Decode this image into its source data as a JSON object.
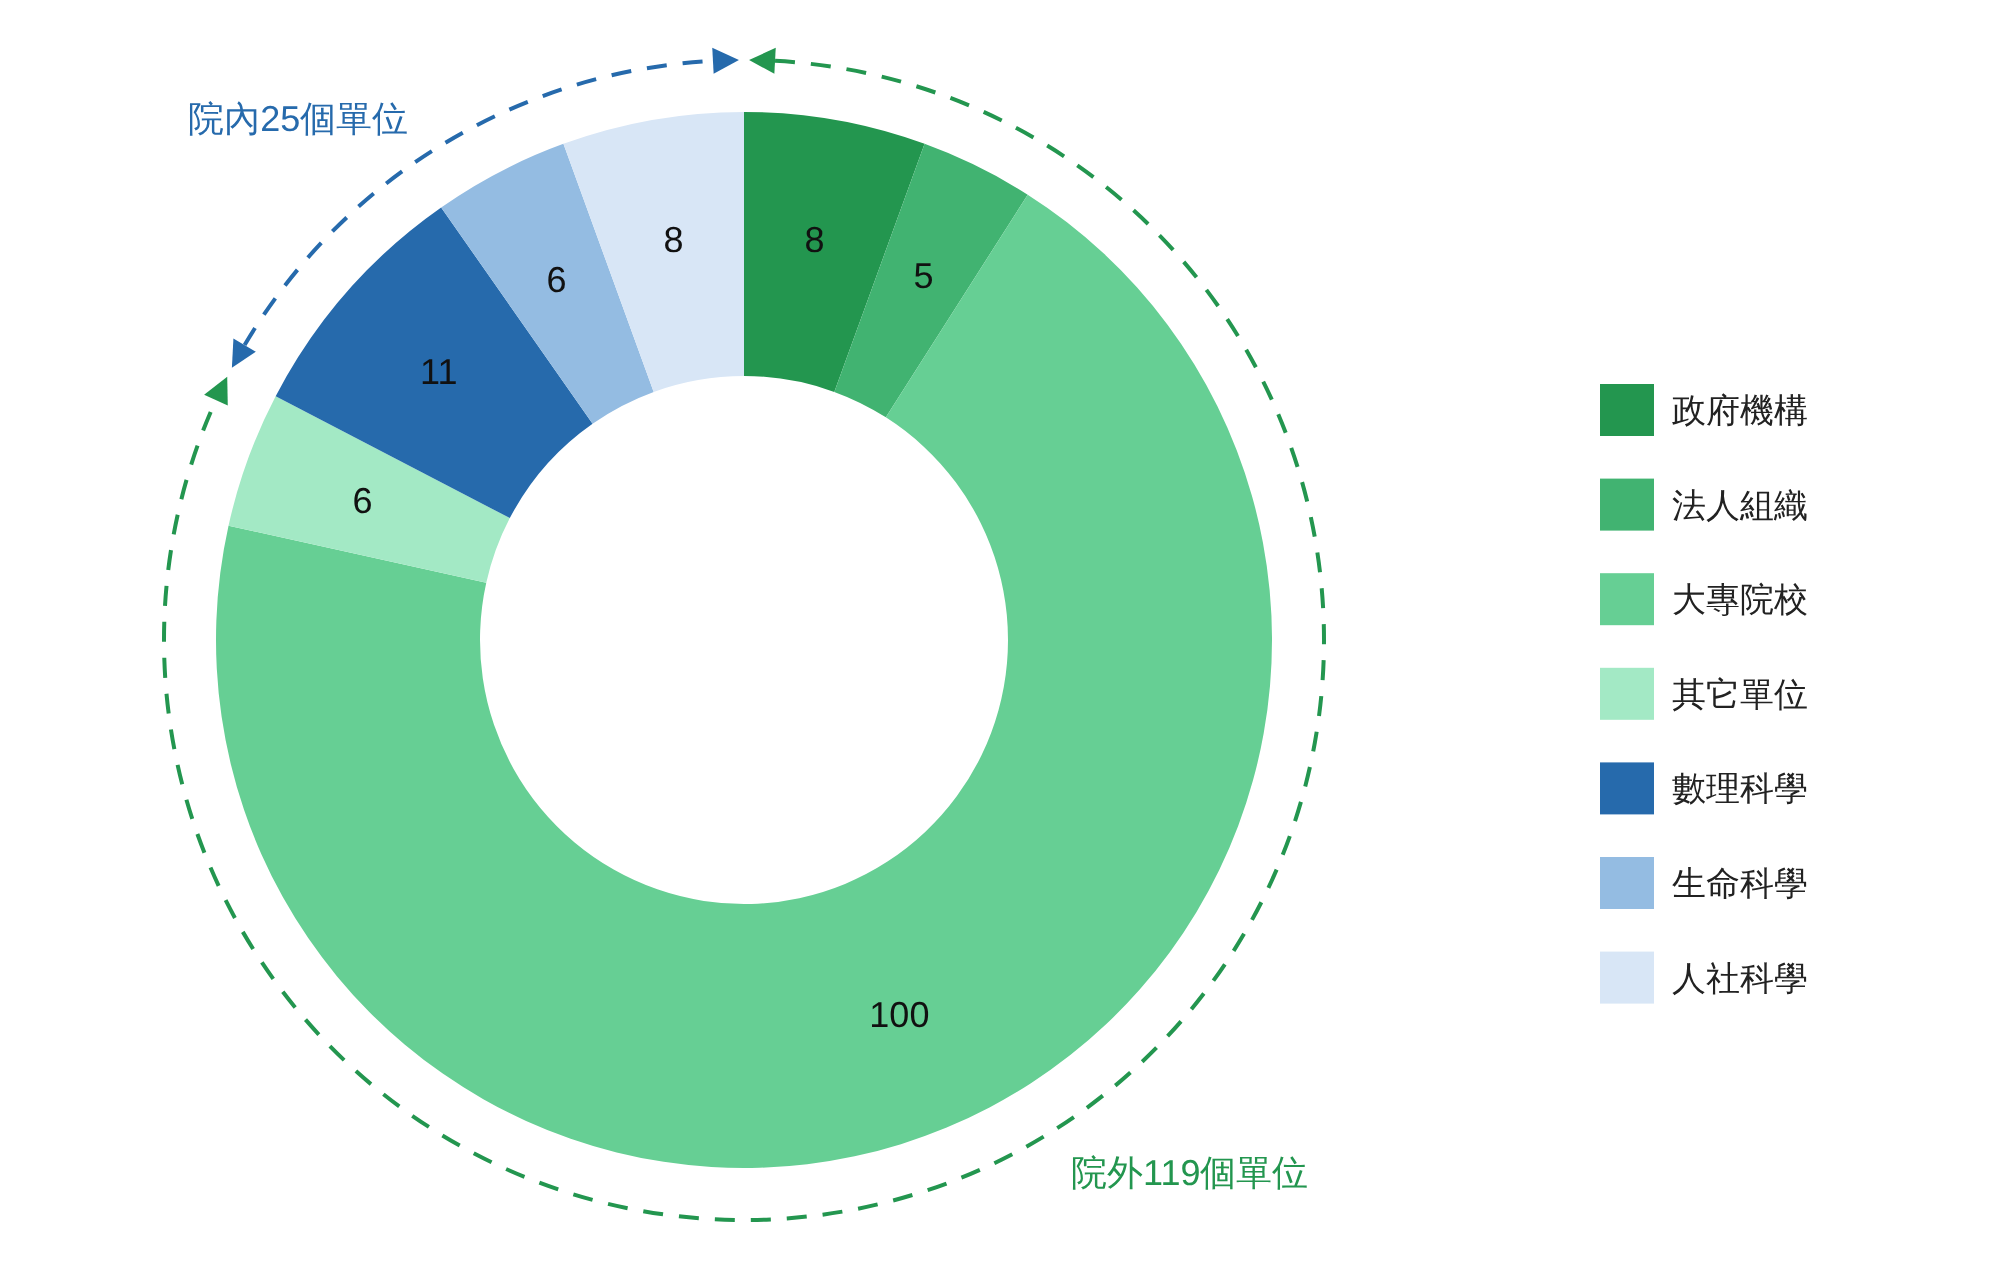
{
  "chart_data": {
    "type": "donut",
    "categories": [
      "政府機構",
      "法人組織",
      "大專院校",
      "其它單位",
      "數理科學",
      "生命科學",
      "人社科學"
    ],
    "values": [
      8,
      5,
      100,
      6,
      11,
      6,
      8
    ],
    "colors": [
      "#23964f",
      "#41b371",
      "#66cf94",
      "#a3e9c5",
      "#266aac",
      "#94bce2",
      "#d8e6f6"
    ],
    "data_labels": true,
    "legend": "right",
    "annotations": [
      "院外119個單位",
      "院內25個單位"
    ]
  }
}
